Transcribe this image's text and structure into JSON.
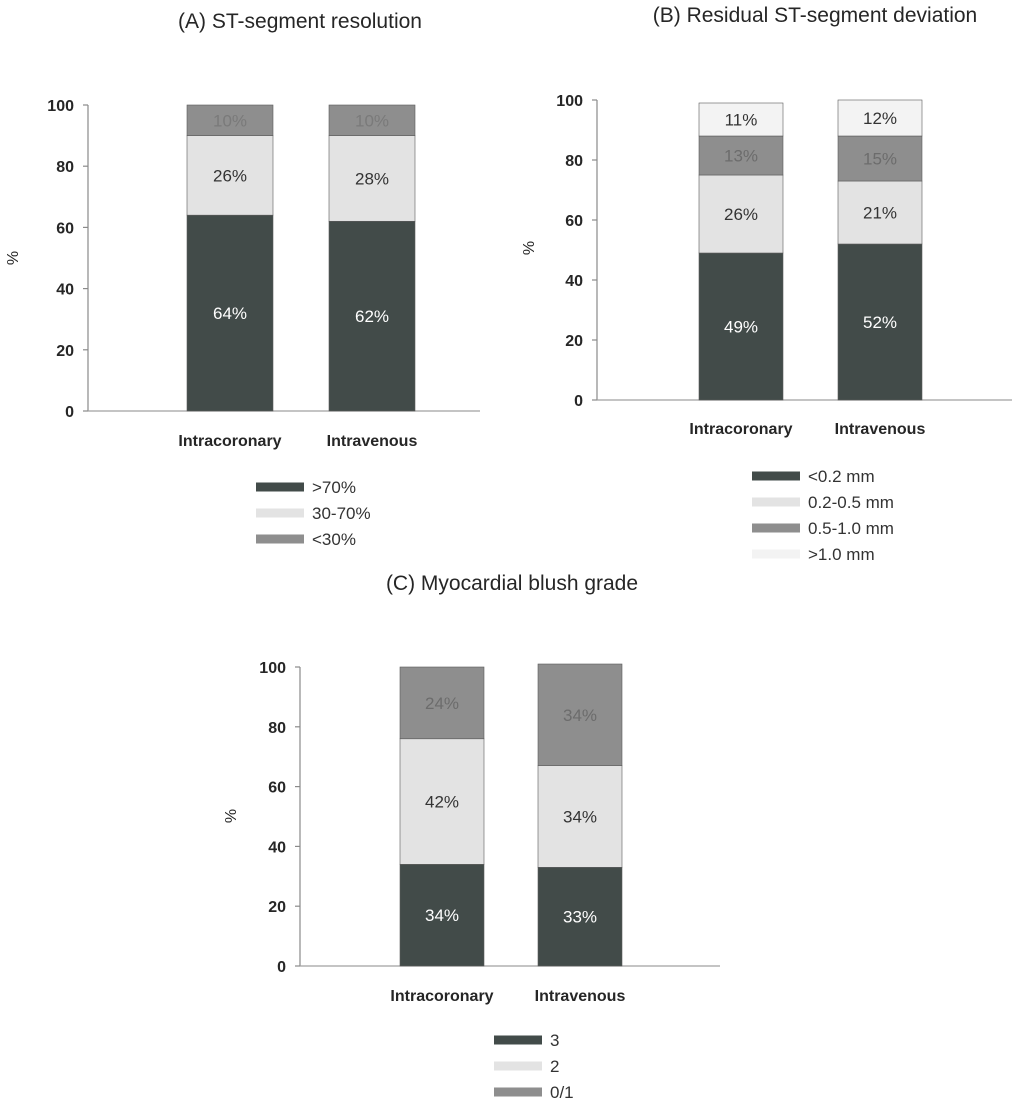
{
  "chart_data": [
    {
      "type": "bar",
      "stacked": true,
      "title": "(A) ST-segment resolution",
      "ylabel": "%",
      "xlabel": "",
      "ylim": [
        0,
        100
      ],
      "yticks": [
        "0",
        "20",
        "40",
        "60",
        "80",
        "100"
      ],
      "categories": [
        "Intracoronary",
        "Intravenous"
      ],
      "series": [
        {
          "name": ">70%",
          "values": [
            64,
            62
          ],
          "labels": [
            "64%",
            "62%"
          ],
          "color": "#424b49",
          "label_color": "#ffffff"
        },
        {
          "name": "30-70%",
          "values": [
            26,
            28
          ],
          "labels": [
            "26%",
            "28%"
          ],
          "color": "#e3e3e3",
          "label_color": "#333333"
        },
        {
          "name": "<30%",
          "values": [
            10,
            10
          ],
          "labels": [
            "10%",
            "10%"
          ],
          "color": "#8e8e8e",
          "label_color": "#7a7a7a"
        }
      ],
      "legend_position": "bottom",
      "grid": false
    },
    {
      "type": "bar",
      "stacked": true,
      "title": "(B) Residual ST-segment deviation",
      "ylabel": "%",
      "xlabel": "",
      "ylim": [
        0,
        100
      ],
      "yticks": [
        "0",
        "20",
        "40",
        "60",
        "80",
        "100"
      ],
      "categories": [
        "Intracoronary",
        "Intravenous"
      ],
      "series": [
        {
          "name": "<0.2 mm",
          "values": [
            49,
            52
          ],
          "labels": [
            "49%",
            "52%"
          ],
          "color": "#424b49",
          "label_color": "#ffffff"
        },
        {
          "name": "0.2-0.5 mm",
          "values": [
            26,
            21
          ],
          "labels": [
            "26%",
            "21%"
          ],
          "color": "#e3e3e3",
          "label_color": "#333333"
        },
        {
          "name": "0.5-1.0 mm",
          "values": [
            13,
            15
          ],
          "labels": [
            "13%",
            "15%"
          ],
          "color": "#8e8e8e",
          "label_color": "#6c6c6c"
        },
        {
          "name": ">1.0 mm",
          "values": [
            11,
            12
          ],
          "labels": [
            "11%",
            "12%"
          ],
          "color": "#f3f3f3",
          "label_color": "#333333"
        }
      ],
      "legend_position": "bottom",
      "grid": false
    },
    {
      "type": "bar",
      "stacked": true,
      "title": "(C) Myocardial blush grade",
      "ylabel": "%",
      "xlabel": "",
      "ylim": [
        0,
        100
      ],
      "yticks": [
        "0",
        "20",
        "40",
        "60",
        "80",
        "100"
      ],
      "categories": [
        "Intracoronary",
        "Intravenous"
      ],
      "series": [
        {
          "name": "3",
          "values": [
            34,
            33
          ],
          "labels": [
            "34%",
            "33%"
          ],
          "color": "#424b49",
          "label_color": "#ffffff"
        },
        {
          "name": "2",
          "values": [
            42,
            34
          ],
          "labels": [
            "42%",
            "34%"
          ],
          "color": "#e3e3e3",
          "label_color": "#333333"
        },
        {
          "name": "0/1",
          "values": [
            24,
            34
          ],
          "labels": [
            "24%",
            "34%"
          ],
          "color": "#8e8e8e",
          "label_color": "#6c6c6c"
        }
      ],
      "legend_position": "bottom",
      "grid": false
    }
  ]
}
